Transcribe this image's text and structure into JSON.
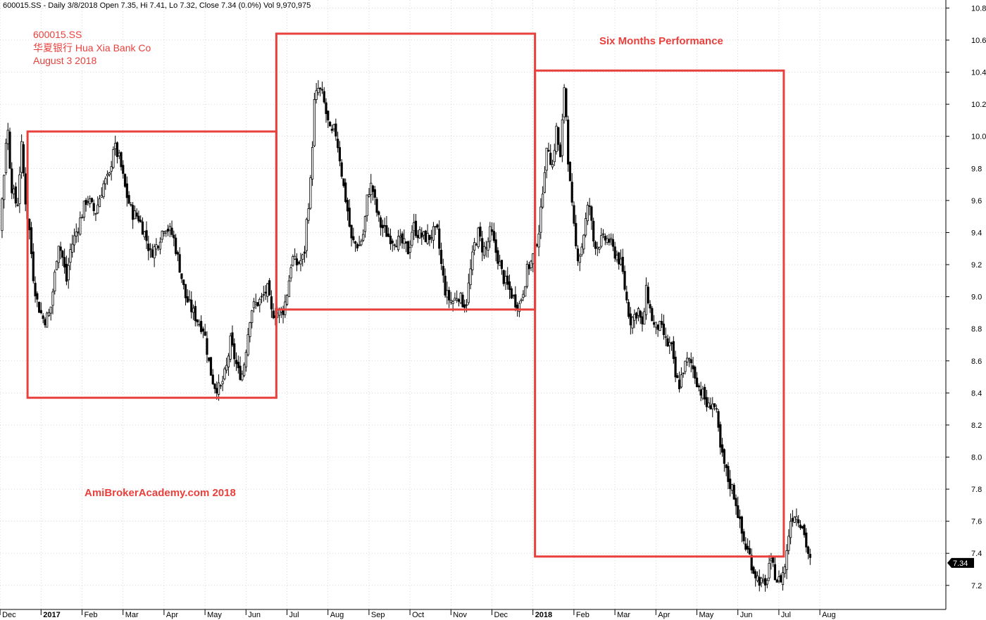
{
  "chart_data": {
    "type": "line",
    "header": "600015.SS - Daily 3/8/2018 Open 7.35, Hi 7.41, Lo 7.32, Close 7.34 (0.0%) Vol 9,970,975",
    "annotations": {
      "symbol": "600015.SS",
      "name": "华夏银行  Hua Xia Bank Co",
      "date": "August 3 2018",
      "performance_title": "Six Months Performance",
      "watermark": "AmiBrokerAcademy.com  2018"
    },
    "ylim": [
      7.05,
      10.85
    ],
    "yticks": [
      "10.8",
      "10.6",
      "10.4",
      "10.2",
      "10.0",
      "9.8",
      "9.6",
      "9.4",
      "9.2",
      "9.0",
      "8.8",
      "8.6",
      "8.4",
      "8.2",
      "8.0",
      "7.8",
      "7.6",
      "7.4",
      "7.2"
    ],
    "xticks": [
      {
        "label": "Dec",
        "bold": false,
        "pos": 0.5
      },
      {
        "label": "2017",
        "bold": true,
        "pos": 1.5
      },
      {
        "label": "Feb",
        "bold": false,
        "pos": 2.5
      },
      {
        "label": "Mar",
        "bold": false,
        "pos": 3.5
      },
      {
        "label": "Apr",
        "bold": false,
        "pos": 4.5
      },
      {
        "label": "May",
        "bold": false,
        "pos": 5.5
      },
      {
        "label": "Jun",
        "bold": false,
        "pos": 6.5
      },
      {
        "label": "Jul",
        "bold": false,
        "pos": 7.5
      },
      {
        "label": "Aug",
        "bold": false,
        "pos": 8.5
      },
      {
        "label": "Sep",
        "bold": false,
        "pos": 9.5
      },
      {
        "label": "Oct",
        "bold": false,
        "pos": 10.5
      },
      {
        "label": "Nov",
        "bold": false,
        "pos": 11.5
      },
      {
        "label": "Dec",
        "bold": false,
        "pos": 12.5
      },
      {
        "label": "2018",
        "bold": true,
        "pos": 13.5
      },
      {
        "label": "Feb",
        "bold": false,
        "pos": 14.5
      },
      {
        "label": "Mar",
        "bold": false,
        "pos": 15.5
      },
      {
        "label": "Apr",
        "bold": false,
        "pos": 16.5
      },
      {
        "label": "May",
        "bold": false,
        "pos": 17.5
      },
      {
        "label": "Jun",
        "bold": false,
        "pos": 18.5
      },
      {
        "label": "Jul",
        "bold": false,
        "pos": 19.5
      },
      {
        "label": "Aug",
        "bold": false,
        "pos": 20.5
      }
    ],
    "series": [
      {
        "values_by_month": [
          [
            0.0,
            9.1
          ],
          [
            0.3,
            9.17
          ],
          [
            0.5,
            9.85
          ],
          [
            0.55,
            10.12
          ],
          [
            0.65,
            9.7
          ],
          [
            0.8,
            9.55
          ],
          [
            0.9,
            9.95
          ],
          [
            1.0,
            9.6
          ],
          [
            1.1,
            9.4
          ],
          [
            1.2,
            9.1
          ],
          [
            1.3,
            8.95
          ],
          [
            1.45,
            8.85
          ],
          [
            1.6,
            8.9
          ],
          [
            1.7,
            9.1
          ],
          [
            1.8,
            9.35
          ],
          [
            1.9,
            9.25
          ],
          [
            2.0,
            9.1
          ],
          [
            2.1,
            9.3
          ],
          [
            2.3,
            9.45
          ],
          [
            2.5,
            9.62
          ],
          [
            2.7,
            9.52
          ],
          [
            2.9,
            9.7
          ],
          [
            3.05,
            9.75
          ],
          [
            3.15,
            9.95
          ],
          [
            3.3,
            9.85
          ],
          [
            3.45,
            9.65
          ],
          [
            3.6,
            9.52
          ],
          [
            3.75,
            9.5
          ],
          [
            3.9,
            9.4
          ],
          [
            4.05,
            9.27
          ],
          [
            4.2,
            9.32
          ],
          [
            4.4,
            9.45
          ],
          [
            4.6,
            9.38
          ],
          [
            4.75,
            9.2
          ],
          [
            4.9,
            9.0
          ],
          [
            5.05,
            8.92
          ],
          [
            5.2,
            8.85
          ],
          [
            5.35,
            8.8
          ],
          [
            5.5,
            8.55
          ],
          [
            5.6,
            8.45
          ],
          [
            5.75,
            8.42
          ],
          [
            5.9,
            8.55
          ],
          [
            6.0,
            8.72
          ],
          [
            6.1,
            8.62
          ],
          [
            6.2,
            8.52
          ],
          [
            6.3,
            8.52
          ],
          [
            6.4,
            8.72
          ],
          [
            6.5,
            8.92
          ],
          [
            6.6,
            8.95
          ],
          [
            6.75,
            8.98
          ],
          [
            6.9,
            9.05
          ],
          [
            7.0,
            8.9
          ],
          [
            7.15,
            8.9
          ],
          [
            7.3,
            8.92
          ],
          [
            7.4,
            9.05
          ],
          [
            7.5,
            9.25
          ],
          [
            7.6,
            9.2
          ],
          [
            7.7,
            9.22
          ],
          [
            7.8,
            9.25
          ],
          [
            7.85,
            9.45
          ],
          [
            7.95,
            9.7
          ],
          [
            8.05,
            10.22
          ],
          [
            8.15,
            10.3
          ],
          [
            8.25,
            10.25
          ],
          [
            8.35,
            10.12
          ],
          [
            8.45,
            10.0
          ],
          [
            8.55,
            10.05
          ],
          [
            8.65,
            9.9
          ],
          [
            8.75,
            9.7
          ],
          [
            8.85,
            9.55
          ],
          [
            8.95,
            9.35
          ],
          [
            9.05,
            9.33
          ],
          [
            9.15,
            9.32
          ],
          [
            9.25,
            9.4
          ],
          [
            9.35,
            9.65
          ],
          [
            9.45,
            9.7
          ],
          [
            9.55,
            9.55
          ],
          [
            9.65,
            9.45
          ],
          [
            9.75,
            9.42
          ],
          [
            9.85,
            9.38
          ],
          [
            9.95,
            9.36
          ],
          [
            10.05,
            9.35
          ],
          [
            10.15,
            9.34
          ],
          [
            10.25,
            9.32
          ],
          [
            10.35,
            9.28
          ],
          [
            10.45,
            9.45
          ],
          [
            10.55,
            9.4
          ],
          [
            10.65,
            9.38
          ],
          [
            10.75,
            9.37
          ],
          [
            10.85,
            9.37
          ],
          [
            10.95,
            9.4
          ],
          [
            11.05,
            9.4
          ],
          [
            11.15,
            9.18
          ],
          [
            11.25,
            9.02
          ],
          [
            11.35,
            8.98
          ],
          [
            11.45,
            8.97
          ],
          [
            11.55,
            9.02
          ],
          [
            11.65,
            8.97
          ],
          [
            11.75,
            8.95
          ],
          [
            11.85,
            9.15
          ],
          [
            11.95,
            9.32
          ],
          [
            12.05,
            9.4
          ],
          [
            12.15,
            9.3
          ],
          [
            12.25,
            9.3
          ],
          [
            12.35,
            9.42
          ],
          [
            12.45,
            9.3
          ],
          [
            12.55,
            9.22
          ],
          [
            12.65,
            9.12
          ],
          [
            12.75,
            9.07
          ],
          [
            12.85,
            9.02
          ],
          [
            12.95,
            8.97
          ],
          [
            13.05,
            8.95
          ],
          [
            13.15,
            9.05
          ],
          [
            13.25,
            9.18
          ],
          [
            13.35,
            9.22
          ],
          [
            13.45,
            9.32
          ],
          [
            13.55,
            9.45
          ],
          [
            13.65,
            9.78
          ],
          [
            13.75,
            9.95
          ],
          [
            13.85,
            9.8
          ],
          [
            13.95,
            10.05
          ],
          [
            14.05,
            9.85
          ],
          [
            14.15,
            10.35
          ],
          [
            14.25,
            9.8
          ],
          [
            14.35,
            9.5
          ],
          [
            14.45,
            9.25
          ],
          [
            14.55,
            9.28
          ],
          [
            14.65,
            9.45
          ],
          [
            14.75,
            9.6
          ],
          [
            14.85,
            9.35
          ],
          [
            14.95,
            9.32
          ],
          [
            15.05,
            9.35
          ],
          [
            15.15,
            9.36
          ],
          [
            15.25,
            9.35
          ],
          [
            15.35,
            9.28
          ],
          [
            15.45,
            9.25
          ],
          [
            15.55,
            9.18
          ],
          [
            15.65,
            9.0
          ],
          [
            15.75,
            8.85
          ],
          [
            15.85,
            8.88
          ],
          [
            15.95,
            8.92
          ],
          [
            16.05,
            8.8
          ],
          [
            16.15,
            9.05
          ],
          [
            16.25,
            8.9
          ],
          [
            16.35,
            8.8
          ],
          [
            16.45,
            8.82
          ],
          [
            16.55,
            8.78
          ],
          [
            16.65,
            8.7
          ],
          [
            16.75,
            8.7
          ],
          [
            16.85,
            8.5
          ],
          [
            16.95,
            8.45
          ],
          [
            17.05,
            8.55
          ],
          [
            17.15,
            8.6
          ],
          [
            17.25,
            8.58
          ],
          [
            17.35,
            8.5
          ],
          [
            17.45,
            8.42
          ],
          [
            17.55,
            8.38
          ],
          [
            17.65,
            8.3
          ],
          [
            17.75,
            8.35
          ],
          [
            17.85,
            8.28
          ],
          [
            17.95,
            8.05
          ],
          [
            18.05,
            7.95
          ],
          [
            18.15,
            7.85
          ],
          [
            18.25,
            7.8
          ],
          [
            18.35,
            7.7
          ],
          [
            18.45,
            7.55
          ],
          [
            18.55,
            7.45
          ],
          [
            18.65,
            7.4
          ],
          [
            18.75,
            7.3
          ],
          [
            18.85,
            7.25
          ],
          [
            18.95,
            7.22
          ],
          [
            19.05,
            7.18
          ],
          [
            19.15,
            7.35
          ],
          [
            19.25,
            7.3
          ],
          [
            19.35,
            7.22
          ],
          [
            19.45,
            7.25
          ],
          [
            19.55,
            7.35
          ],
          [
            19.65,
            7.6
          ],
          [
            19.75,
            7.65
          ],
          [
            19.85,
            7.62
          ],
          [
            19.95,
            7.58
          ],
          [
            20.05,
            7.45
          ],
          [
            20.15,
            7.34
          ]
        ]
      }
    ],
    "boxes": [
      {
        "x0": 1.05,
        "x1": 7.12,
        "y0": 8.37,
        "y1": 10.03
      },
      {
        "x0": 7.12,
        "x1": 13.43,
        "y0": 8.92,
        "y1": 10.64
      },
      {
        "x0": 13.43,
        "x1": 19.5,
        "y0": 7.38,
        "y1": 10.41
      }
    ],
    "last_value": "7.34",
    "grid": true,
    "colors": {
      "bars": "#000000",
      "boxes": "#e8403c",
      "text": "#e8403c",
      "grid": "#c0c0c0"
    }
  }
}
